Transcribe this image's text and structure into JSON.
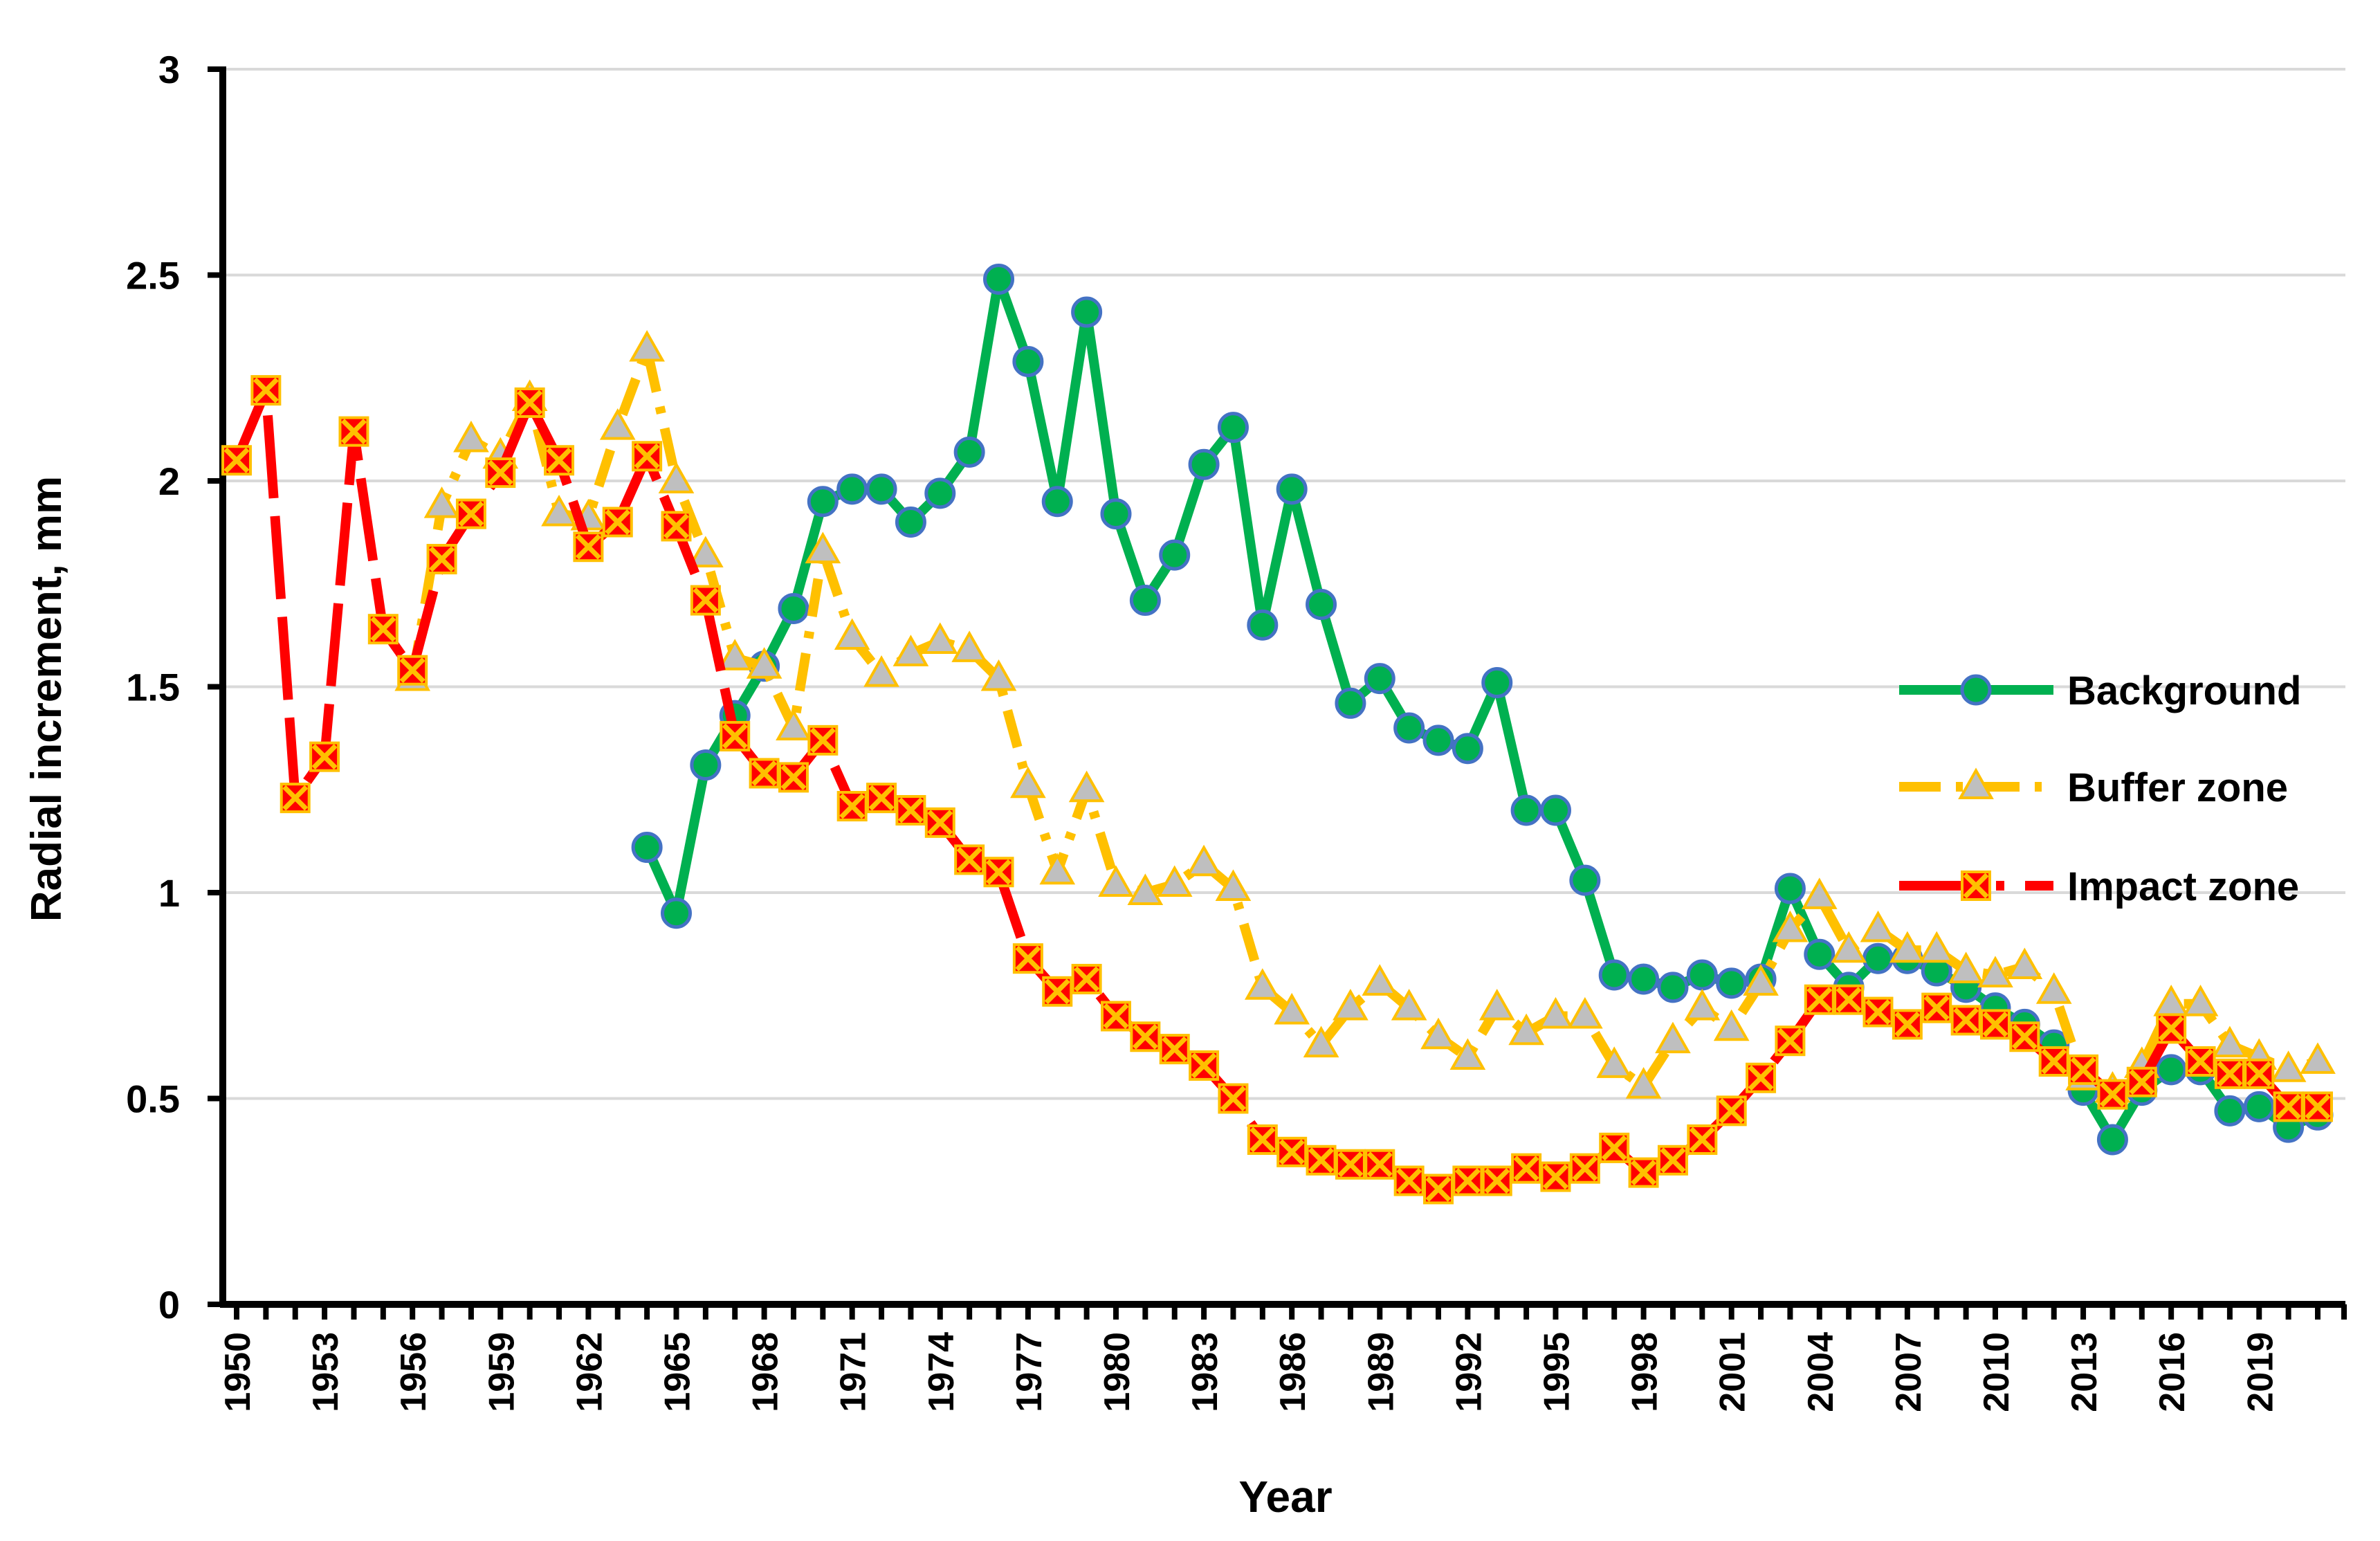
{
  "chart_data": {
    "type": "line",
    "xlabel": "Year",
    "ylabel": "Radial increment, mm",
    "ylim": [
      0,
      3
    ],
    "yticks": [
      "0",
      "0.5",
      "1",
      "1.5",
      "2",
      "2.5",
      "3"
    ],
    "xlim": [
      1950,
      2021
    ],
    "xtick_years": [
      1950,
      1953,
      1956,
      1959,
      1962,
      1965,
      1968,
      1971,
      1974,
      1977,
      1980,
      1983,
      1986,
      1989,
      1992,
      1995,
      1998,
      2001,
      2004,
      2007,
      2010,
      2013,
      2016,
      2019
    ],
    "grid": "horizontal",
    "legend_position": "right",
    "series": [
      {
        "name": "Background",
        "color": "#00B050",
        "marker": "circle",
        "marker_fill": "#00B050",
        "marker_stroke": "#4472C4",
        "line_style": "solid",
        "x": [
          1964,
          1965,
          1966,
          1967,
          1968,
          1969,
          1970,
          1971,
          1972,
          1973,
          1974,
          1975,
          1976,
          1977,
          1978,
          1979,
          1980,
          1981,
          1982,
          1983,
          1984,
          1985,
          1986,
          1987,
          1988,
          1989,
          1990,
          1991,
          1992,
          1993,
          1994,
          1995,
          1996,
          1997,
          1998,
          1999,
          2000,
          2001,
          2002,
          2003,
          2004,
          2005,
          2006,
          2007,
          2008,
          2009,
          2010,
          2011,
          2012,
          2013,
          2014,
          2015,
          2016,
          2017,
          2018,
          2019,
          2020,
          2021
        ],
        "values": [
          1.11,
          0.95,
          1.31,
          1.43,
          1.55,
          1.69,
          1.95,
          1.98,
          1.98,
          1.9,
          1.97,
          2.07,
          2.49,
          2.29,
          1.95,
          2.41,
          1.92,
          1.71,
          1.82,
          2.04,
          2.13,
          1.65,
          1.98,
          1.7,
          1.46,
          1.52,
          1.4,
          1.37,
          1.35,
          1.51,
          1.2,
          1.2,
          1.03,
          0.8,
          0.79,
          0.77,
          0.8,
          0.78,
          0.79,
          1.01,
          0.85,
          0.77,
          0.84,
          0.84,
          0.81,
          0.77,
          0.72,
          0.68,
          0.63,
          0.52,
          0.4,
          0.52,
          0.57,
          0.57,
          0.47,
          0.48,
          0.43,
          0.46
        ]
      },
      {
        "name": "Buffer zone",
        "color": "#FFC000",
        "marker": "triangle",
        "marker_fill": "#BFBFBF",
        "marker_stroke": "#FFC000",
        "line_style": "dash-dot",
        "x": [
          1956,
          1957,
          1958,
          1959,
          1960,
          1961,
          1962,
          1963,
          1964,
          1965,
          1966,
          1967,
          1968,
          1969,
          1970,
          1971,
          1972,
          1973,
          1974,
          1975,
          1976,
          1977,
          1978,
          1979,
          1980,
          1981,
          1982,
          1983,
          1984,
          1985,
          1986,
          1987,
          1988,
          1989,
          1990,
          1991,
          1992,
          1993,
          1994,
          1995,
          1996,
          1997,
          1998,
          1999,
          2000,
          2001,
          2002,
          2003,
          2004,
          2005,
          2006,
          2007,
          2008,
          2009,
          2010,
          2011,
          2012,
          2013,
          2014,
          2015,
          2016,
          2017,
          2018,
          2019,
          2020,
          2021
        ],
        "values": [
          1.52,
          1.94,
          2.1,
          2.06,
          2.2,
          1.92,
          1.91,
          2.13,
          2.32,
          2.0,
          1.82,
          1.57,
          1.55,
          1.4,
          1.83,
          1.62,
          1.53,
          1.58,
          1.61,
          1.59,
          1.52,
          1.26,
          1.05,
          1.25,
          1.02,
          1.0,
          1.02,
          1.07,
          1.01,
          0.77,
          0.71,
          0.63,
          0.72,
          0.78,
          0.72,
          0.65,
          0.6,
          0.72,
          0.66,
          0.7,
          0.7,
          0.58,
          0.53,
          0.64,
          0.72,
          0.67,
          0.78,
          0.91,
          0.99,
          0.86,
          0.91,
          0.86,
          0.86,
          0.81,
          0.8,
          0.82,
          0.76,
          0.55,
          0.52,
          0.58,
          0.73,
          0.73,
          0.63,
          0.6,
          0.57,
          0.59
        ]
      },
      {
        "name": "Impact zone",
        "color": "#FF0000",
        "marker": "x-square",
        "marker_fill": "#FF0000",
        "marker_stroke": "#FFC000",
        "line_style": "long-dash",
        "x": [
          1950,
          1951,
          1952,
          1953,
          1954,
          1955,
          1956,
          1957,
          1958,
          1959,
          1960,
          1961,
          1962,
          1963,
          1964,
          1965,
          1966,
          1967,
          1968,
          1969,
          1970,
          1971,
          1972,
          1973,
          1974,
          1975,
          1976,
          1977,
          1978,
          1979,
          1980,
          1981,
          1982,
          1983,
          1984,
          1985,
          1986,
          1987,
          1988,
          1989,
          1990,
          1991,
          1992,
          1993,
          1994,
          1995,
          1996,
          1997,
          1998,
          1999,
          2000,
          2001,
          2002,
          2003,
          2004,
          2005,
          2006,
          2007,
          2008,
          2009,
          2010,
          2011,
          2012,
          2013,
          2014,
          2015,
          2016,
          2017,
          2018,
          2019,
          2020,
          2021
        ],
        "values": [
          2.05,
          2.22,
          1.23,
          1.33,
          2.12,
          1.64,
          1.54,
          1.81,
          1.92,
          2.02,
          2.19,
          2.05,
          1.84,
          1.9,
          2.06,
          1.89,
          1.71,
          1.38,
          1.29,
          1.28,
          1.37,
          1.21,
          1.23,
          1.2,
          1.17,
          1.08,
          1.05,
          0.84,
          0.76,
          0.79,
          0.7,
          0.65,
          0.62,
          0.58,
          0.5,
          0.4,
          0.37,
          0.35,
          0.34,
          0.34,
          0.3,
          0.28,
          0.3,
          0.3,
          0.33,
          0.31,
          0.33,
          0.38,
          0.32,
          0.35,
          0.4,
          0.47,
          0.55,
          0.64,
          0.74,
          0.74,
          0.71,
          0.68,
          0.72,
          0.69,
          0.68,
          0.65,
          0.59,
          0.57,
          0.51,
          0.54,
          0.67,
          0.59,
          0.56,
          0.56,
          0.48,
          0.48
        ]
      }
    ]
  }
}
